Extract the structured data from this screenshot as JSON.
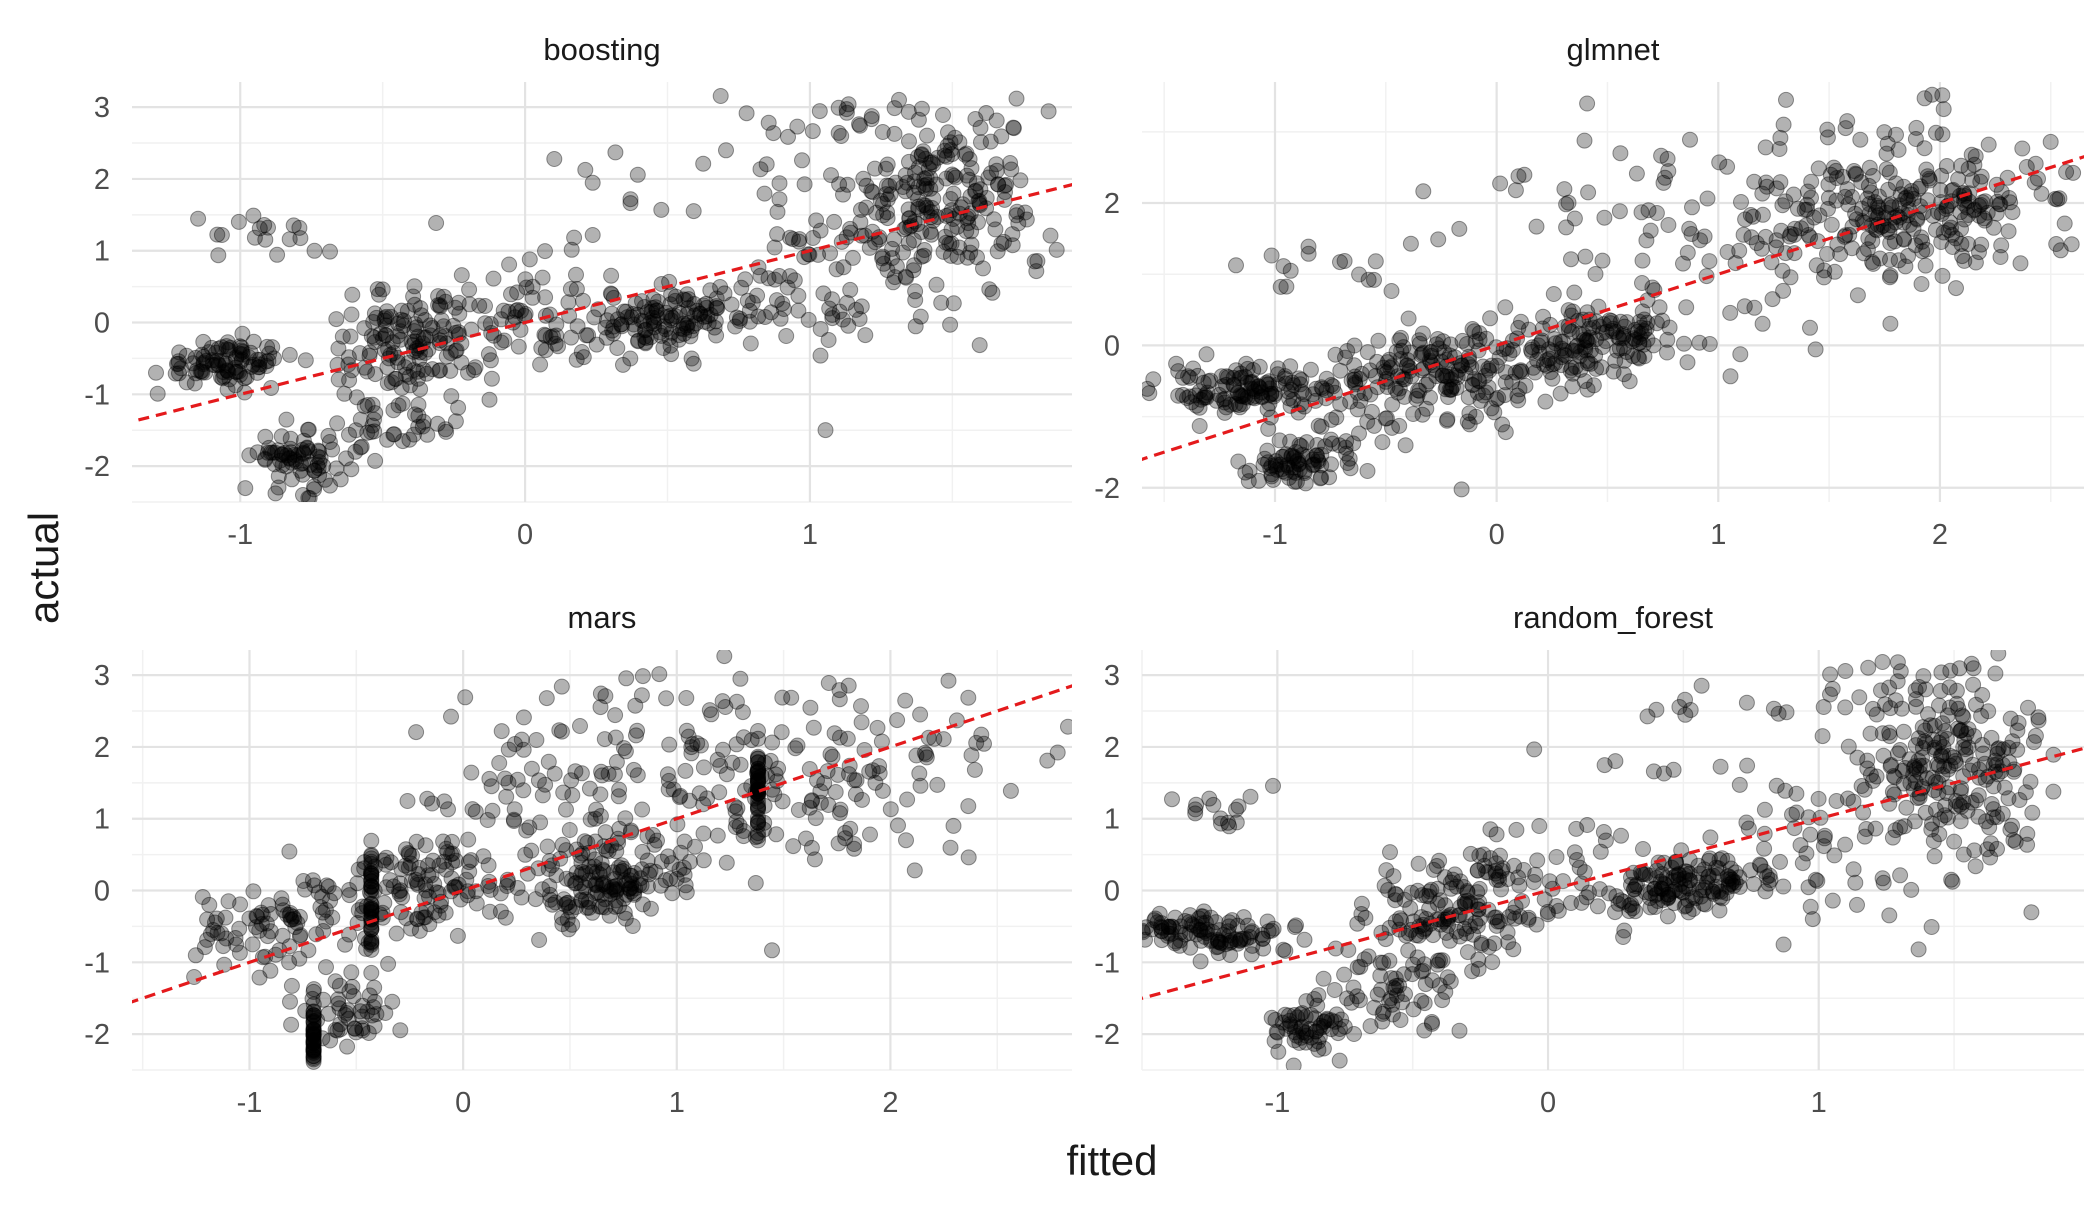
{
  "figure": {
    "xlabel": "fitted",
    "ylabel": "actual"
  },
  "style": {
    "point_color": "#000000",
    "point_opacity": 0.3,
    "refline_color": "#e41a1c",
    "grid_major": "#e3e3e3",
    "grid_minor": "#f1f1f1",
    "text_color": "#4d4d4d",
    "title_color": "#1a1a1a"
  },
  "chart_data": [
    {
      "type": "scatter",
      "title": "boosting",
      "xlim": [
        -1.38,
        1.92
      ],
      "ylim": [
        -2.5,
        3.35
      ],
      "xticks": [
        -1,
        0,
        1
      ],
      "yticks": [
        -2,
        -1,
        0,
        1,
        2,
        3
      ],
      "refline": {
        "slope": 1,
        "intercept": 0,
        "style": "dashed"
      },
      "clusters": [
        {
          "x": -1.05,
          "y": -0.55,
          "sx": 0.12,
          "sy": 0.16,
          "n": 95,
          "rho": 0
        },
        {
          "x": -0.8,
          "y": -1.9,
          "sx": 0.07,
          "sy": 0.2,
          "n": 70,
          "rho": 0
        },
        {
          "x": -0.5,
          "y": -1.55,
          "sx": 0.12,
          "sy": 0.3,
          "n": 50,
          "rho": 0.3
        },
        {
          "x": -0.4,
          "y": -0.25,
          "sx": 0.15,
          "sy": 0.35,
          "n": 130,
          "rho": 0.2
        },
        {
          "x": 0.0,
          "y": 0.15,
          "sx": 0.14,
          "sy": 0.45,
          "n": 60,
          "rho": 0.2
        },
        {
          "x": 0.5,
          "y": 0.05,
          "sx": 0.18,
          "sy": 0.25,
          "n": 150,
          "rho": 0.4
        },
        {
          "x": 1.05,
          "y": 0.6,
          "sx": 0.15,
          "sy": 0.7,
          "n": 60,
          "rho": 0
        },
        {
          "x": 1.45,
          "y": 1.75,
          "sx": 0.16,
          "sy": 0.55,
          "n": 170,
          "rho": 0.2
        },
        {
          "x": 1.55,
          "y": 1.05,
          "sx": 0.15,
          "sy": 0.55,
          "n": 40,
          "rho": 0
        },
        {
          "x": -0.9,
          "y": 1.2,
          "sx": 0.1,
          "sy": 0.15,
          "n": 18,
          "rho": 0
        },
        {
          "x": 0.5,
          "y": 2.2,
          "sx": 0.35,
          "sy": 0.5,
          "n": 18,
          "rho": 0
        },
        {
          "x": 1.35,
          "y": 2.8,
          "sx": 0.25,
          "sy": 0.25,
          "n": 35,
          "rho": 0
        }
      ]
    },
    {
      "type": "scatter",
      "title": "glmnet",
      "xlim": [
        -1.6,
        2.65
      ],
      "ylim": [
        -2.2,
        3.7
      ],
      "xticks": [
        -1,
        0,
        1,
        2
      ],
      "yticks": [
        -2,
        0,
        2
      ],
      "refline": {
        "slope": 1,
        "intercept": 0,
        "style": "dashed"
      },
      "clusters": [
        {
          "x": -1.1,
          "y": -0.6,
          "sx": 0.2,
          "sy": 0.15,
          "n": 130,
          "rho": 0
        },
        {
          "x": -0.9,
          "y": -1.65,
          "sx": 0.13,
          "sy": 0.15,
          "n": 75,
          "rho": 0.2
        },
        {
          "x": -0.45,
          "y": -0.8,
          "sx": 0.35,
          "sy": 0.5,
          "n": 70,
          "rho": 0.4
        },
        {
          "x": -0.25,
          "y": -0.3,
          "sx": 0.25,
          "sy": 0.28,
          "n": 140,
          "rho": 0.2
        },
        {
          "x": 0.45,
          "y": 0.05,
          "sx": 0.2,
          "sy": 0.3,
          "n": 140,
          "rho": 0.2
        },
        {
          "x": 1.1,
          "y": 1.3,
          "sx": 0.35,
          "sy": 0.9,
          "n": 70,
          "rho": 0.3
        },
        {
          "x": 1.9,
          "y": 1.95,
          "sx": 0.35,
          "sy": 0.35,
          "n": 200,
          "rho": 0.1
        },
        {
          "x": 1.75,
          "y": 1.2,
          "sx": 0.3,
          "sy": 0.35,
          "n": 40,
          "rho": 0
        },
        {
          "x": 1.7,
          "y": 2.9,
          "sx": 0.3,
          "sy": 0.35,
          "n": 25,
          "rho": 0
        },
        {
          "x": 0.4,
          "y": 2.1,
          "sx": 0.5,
          "sy": 0.7,
          "n": 30,
          "rho": 0
        },
        {
          "x": -0.85,
          "y": 1.1,
          "sx": 0.15,
          "sy": 0.2,
          "n": 15,
          "rho": 0
        }
      ]
    },
    {
      "type": "scatter",
      "title": "mars",
      "xlim": [
        -1.55,
        2.85
      ],
      "ylim": [
        -2.5,
        3.35
      ],
      "xticks": [
        -1,
        0,
        1,
        2
      ],
      "yticks": [
        -2,
        -1,
        0,
        1,
        2,
        3
      ],
      "refline": {
        "slope": 1,
        "intercept": 0,
        "style": "dashed"
      },
      "clusters": [
        {
          "x": -0.8,
          "y": -0.45,
          "sx": 0.3,
          "sy": 0.35,
          "n": 100,
          "rho": 0.3
        },
        {
          "x": -0.55,
          "y": -1.7,
          "sx": 0.12,
          "sy": 0.25,
          "n": 50,
          "rho": 0
        },
        {
          "x": -0.7,
          "y": -2.0,
          "sx": 0.0,
          "sy": 0.22,
          "n": 40,
          "rho": 0
        },
        {
          "x": -0.43,
          "y": -0.2,
          "sx": 0.0,
          "sy": 0.4,
          "n": 45,
          "rho": 0
        },
        {
          "x": -0.15,
          "y": 0.05,
          "sx": 0.2,
          "sy": 0.35,
          "n": 90,
          "rho": 0.2
        },
        {
          "x": 0.65,
          "y": 0.05,
          "sx": 0.18,
          "sy": 0.35,
          "n": 150,
          "rho": 0.2
        },
        {
          "x": 1.38,
          "y": 1.5,
          "sx": 0.0,
          "sy": 0.35,
          "n": 45,
          "rho": 0
        },
        {
          "x": 1.7,
          "y": 1.5,
          "sx": 0.45,
          "sy": 0.7,
          "n": 150,
          "rho": 0.2
        },
        {
          "x": 0.8,
          "y": 1.9,
          "sx": 0.45,
          "sy": 0.7,
          "n": 80,
          "rho": 0
        },
        {
          "x": 0.2,
          "y": 0.8,
          "sx": 0.4,
          "sy": 0.6,
          "n": 60,
          "rho": 0.3
        }
      ]
    },
    {
      "type": "scatter",
      "title": "random_forest",
      "xlim": [
        -1.5,
        1.98
      ],
      "ylim": [
        -2.5,
        3.35
      ],
      "xticks": [
        -1,
        0,
        1
      ],
      "yticks": [
        -2,
        -1,
        0,
        1,
        2,
        3
      ],
      "refline": {
        "slope": 1,
        "intercept": 0,
        "style": "dashed"
      },
      "clusters": [
        {
          "x": -1.25,
          "y": -0.6,
          "sx": 0.13,
          "sy": 0.16,
          "n": 110,
          "rho": 0
        },
        {
          "x": -0.9,
          "y": -1.9,
          "sx": 0.07,
          "sy": 0.2,
          "n": 60,
          "rho": 0
        },
        {
          "x": -0.55,
          "y": -1.3,
          "sx": 0.15,
          "sy": 0.45,
          "n": 70,
          "rho": 0.3
        },
        {
          "x": -0.35,
          "y": -0.2,
          "sx": 0.15,
          "sy": 0.35,
          "n": 140,
          "rho": 0.2
        },
        {
          "x": 0.0,
          "y": 0.2,
          "sx": 0.2,
          "sy": 0.45,
          "n": 40,
          "rho": 0.2
        },
        {
          "x": 0.5,
          "y": 0.1,
          "sx": 0.16,
          "sy": 0.22,
          "n": 150,
          "rho": 0.4
        },
        {
          "x": 1.0,
          "y": 0.6,
          "sx": 0.15,
          "sy": 0.6,
          "n": 40,
          "rho": 0
        },
        {
          "x": 1.45,
          "y": 1.8,
          "sx": 0.18,
          "sy": 0.55,
          "n": 180,
          "rho": 0.2
        },
        {
          "x": 1.55,
          "y": 1.0,
          "sx": 0.18,
          "sy": 0.55,
          "n": 45,
          "rho": 0
        },
        {
          "x": -1.15,
          "y": 1.2,
          "sx": 0.12,
          "sy": 0.2,
          "n": 15,
          "rho": 0
        },
        {
          "x": 0.6,
          "y": 2.3,
          "sx": 0.35,
          "sy": 0.5,
          "n": 18,
          "rho": 0
        },
        {
          "x": 1.35,
          "y": 2.8,
          "sx": 0.2,
          "sy": 0.25,
          "n": 30,
          "rho": 0
        }
      ]
    }
  ]
}
